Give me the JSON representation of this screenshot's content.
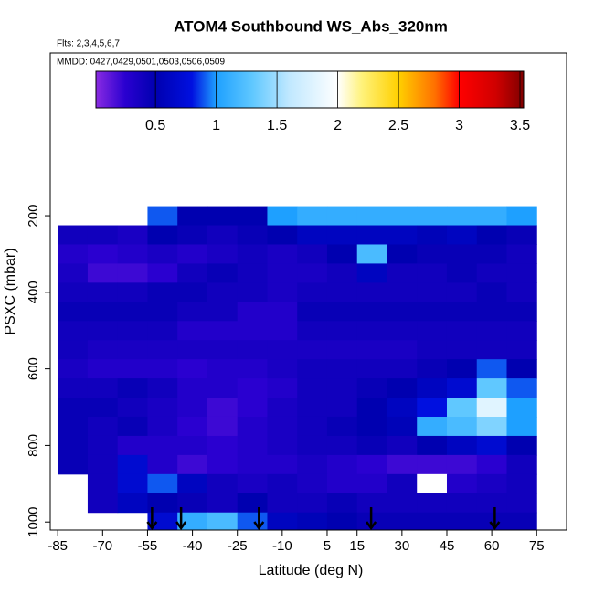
{
  "chart_data": {
    "type": "heatmap",
    "title": "ATOM4 Southbound WS_Abs_320nm",
    "subtitle": "Flts: 2,3,4,5,6,7",
    "annotation": "MMDD: 0427,0429,0501,0503,0506,0509",
    "x_label": "Latitude (deg N)",
    "y_label": "PSXC (mbar)",
    "xlim": [
      -87.5,
      85
    ],
    "ylim": [
      1021,
      -225
    ],
    "xticks": [
      -85,
      -70,
      -55,
      -40,
      -25,
      -10,
      5,
      15,
      30,
      45,
      60,
      75
    ],
    "yticks": [
      200,
      400,
      600,
      800,
      1000
    ],
    "clim": [
      0.01,
      3.53
    ],
    "cticks": [
      0.5,
      1.0,
      1.5,
      2.0,
      2.5,
      3.0,
      3.5
    ],
    "colormap": [
      [
        0,
        "#8a2be2"
      ],
      [
        0.25,
        "#2a00d0"
      ],
      [
        0.5,
        "#0000b0"
      ],
      [
        0.8,
        "#0010e0"
      ],
      [
        1.0,
        "#1ea0ff"
      ],
      [
        1.3,
        "#60c8ff"
      ],
      [
        1.6,
        "#c0e8ff"
      ],
      [
        2.0,
        "#ffffff"
      ],
      [
        2.2,
        "#fff27a"
      ],
      [
        2.5,
        "#ffd000"
      ],
      [
        2.8,
        "#ff7000"
      ],
      [
        3.0,
        "#ff0000"
      ],
      [
        3.3,
        "#d00000"
      ],
      [
        3.53,
        "#800000"
      ]
    ],
    "x": [
      -80,
      -70,
      -60,
      -50,
      -40,
      -30,
      -20,
      -10,
      0,
      10,
      20,
      30,
      40,
      50,
      60,
      70
    ],
    "y": [
      200,
      250,
      300,
      350,
      400,
      450,
      500,
      550,
      600,
      650,
      700,
      750,
      800,
      850,
      900,
      950,
      1000
    ],
    "z": [
      [
        null,
        null,
        null,
        0.9,
        0.5,
        0.5,
        0.5,
        1.0,
        1.1,
        1.1,
        1.1,
        1.1,
        1.1,
        1.1,
        1.1,
        1.0
      ],
      [
        0.4,
        0.4,
        0.35,
        0.5,
        0.45,
        0.4,
        0.45,
        0.5,
        0.6,
        0.6,
        0.6,
        0.6,
        0.55,
        0.6,
        0.5,
        0.45
      ],
      [
        0.3,
        0.25,
        0.3,
        0.35,
        0.3,
        0.35,
        0.4,
        0.35,
        0.4,
        0.5,
        1.2,
        0.5,
        0.45,
        0.45,
        0.45,
        0.4
      ],
      [
        0.35,
        0.2,
        0.2,
        0.25,
        0.4,
        0.45,
        0.4,
        0.35,
        0.35,
        0.4,
        0.6,
        0.4,
        0.4,
        0.45,
        0.4,
        0.4
      ],
      [
        0.4,
        0.4,
        0.4,
        0.45,
        0.45,
        0.4,
        0.4,
        0.35,
        0.4,
        0.4,
        0.4,
        0.4,
        0.4,
        0.4,
        0.45,
        0.4
      ],
      [
        0.45,
        0.45,
        0.45,
        0.45,
        0.4,
        0.4,
        0.3,
        0.3,
        0.45,
        0.45,
        0.45,
        0.45,
        0.45,
        0.45,
        0.45,
        0.45
      ],
      [
        0.4,
        0.4,
        0.4,
        0.4,
        0.3,
        0.3,
        0.3,
        0.3,
        0.4,
        0.4,
        0.4,
        0.4,
        0.4,
        0.4,
        0.4,
        0.4
      ],
      [
        0.4,
        0.35,
        0.35,
        0.35,
        0.35,
        0.35,
        0.35,
        0.35,
        0.35,
        0.35,
        0.35,
        0.35,
        0.4,
        0.4,
        0.4,
        0.4
      ],
      [
        0.35,
        0.3,
        0.3,
        0.3,
        0.25,
        0.3,
        0.3,
        0.35,
        0.4,
        0.4,
        0.4,
        0.4,
        0.45,
        0.5,
        0.9,
        0.5
      ],
      [
        0.4,
        0.4,
        0.45,
        0.4,
        0.3,
        0.3,
        0.25,
        0.3,
        0.4,
        0.4,
        0.45,
        0.5,
        0.6,
        0.7,
        1.3,
        0.9
      ],
      [
        0.45,
        0.45,
        0.4,
        0.35,
        0.3,
        0.2,
        0.25,
        0.35,
        0.4,
        0.4,
        0.5,
        0.6,
        0.8,
        1.3,
        1.8,
        1.0
      ],
      [
        0.45,
        0.4,
        0.45,
        0.35,
        0.25,
        0.2,
        0.3,
        0.35,
        0.4,
        0.45,
        0.5,
        0.55,
        1.1,
        1.2,
        1.4,
        1.0
      ],
      [
        0.45,
        0.4,
        0.3,
        0.3,
        0.3,
        0.25,
        0.3,
        0.35,
        0.4,
        0.4,
        0.45,
        0.4,
        0.5,
        0.6,
        0.7,
        0.5
      ],
      [
        0.45,
        0.4,
        0.7,
        0.3,
        0.2,
        0.25,
        0.3,
        0.3,
        0.35,
        0.3,
        0.25,
        0.2,
        0.2,
        0.2,
        0.25,
        0.4
      ],
      [
        null,
        0.4,
        0.7,
        0.9,
        0.6,
        0.4,
        0.35,
        0.4,
        0.35,
        0.3,
        0.3,
        0.4,
        2.0,
        0.3,
        0.35,
        0.4
      ],
      [
        null,
        0.4,
        0.6,
        0.5,
        0.45,
        0.4,
        0.5,
        0.4,
        0.4,
        0.45,
        0.4,
        0.4,
        0.4,
        0.4,
        0.4,
        0.4
      ],
      [
        null,
        null,
        null,
        0.7,
        1.1,
        1.2,
        0.9,
        0.6,
        0.55,
        0.5,
        0.45,
        0.45,
        0.45,
        0.45,
        0.45,
        0.45
      ]
    ],
    "arrows": [
      -53.5,
      -43.8,
      -17.8,
      19.7,
      61
    ]
  }
}
